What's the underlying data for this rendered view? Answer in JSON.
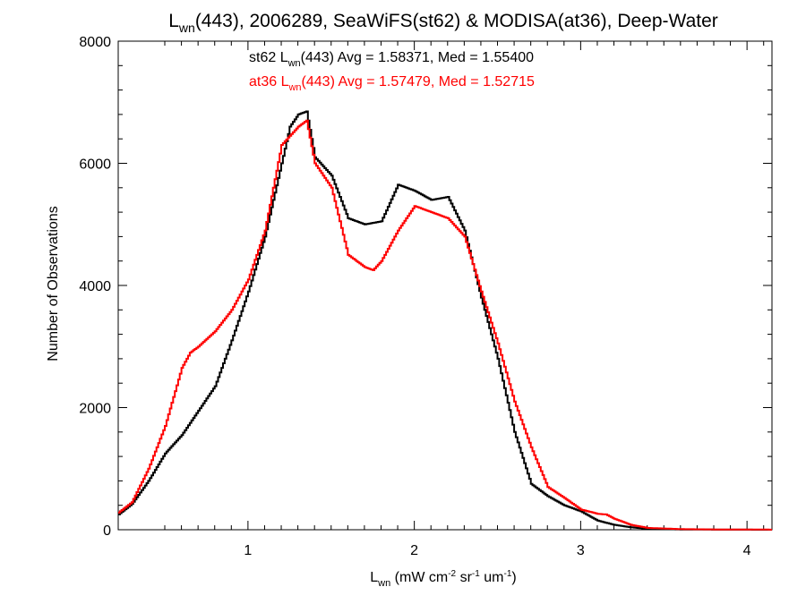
{
  "chart_data": {
    "type": "line",
    "title": {
      "pre": "L",
      "sub": "wn",
      "post": "(443), 2006289, SeaWiFS(st62) & MODISA(at36), Deep-Water"
    },
    "xlabel": {
      "pre": "L",
      "sub": "wn",
      "mid1": " (mW cm",
      "sup1": "-2",
      "mid2": " sr",
      "sup2": "-1",
      "mid3": " um",
      "sup3": "-1",
      "post": ")"
    },
    "ylabel": "Number of Observations",
    "xlim": [
      0.22,
      4.15
    ],
    "ylim": [
      0,
      8000
    ],
    "x_ticks": [
      1,
      2,
      3,
      4
    ],
    "x_tick_labels": [
      "1",
      "2",
      "3",
      "4"
    ],
    "y_ticks": [
      0,
      2000,
      4000,
      6000,
      8000
    ],
    "y_tick_labels": [
      "0",
      "2000",
      "4000",
      "6000",
      "8000"
    ],
    "grid": false,
    "legend": [
      {
        "pre": "st62 L",
        "sub": "wn",
        "post": "(443) Avg = 1.58371, Med = 1.55400",
        "color": "#000000"
      },
      {
        "pre": "at36 L",
        "sub": "wn",
        "post": "(443) Avg = 1.57479, Med = 1.52715",
        "color": "#ff0000"
      }
    ],
    "series": [
      {
        "color": "#000000",
        "step": true,
        "points": [
          [
            0.22,
            250
          ],
          [
            0.3,
            420
          ],
          [
            0.4,
            800
          ],
          [
            0.5,
            1250
          ],
          [
            0.6,
            1550
          ],
          [
            0.7,
            1950
          ],
          [
            0.8,
            2350
          ],
          [
            0.9,
            3100
          ],
          [
            1.0,
            3900
          ],
          [
            1.1,
            4800
          ],
          [
            1.2,
            6000
          ],
          [
            1.25,
            6600
          ],
          [
            1.3,
            6800
          ],
          [
            1.35,
            6850
          ],
          [
            1.4,
            6100
          ],
          [
            1.5,
            5800
          ],
          [
            1.6,
            5100
          ],
          [
            1.7,
            5000
          ],
          [
            1.8,
            5050
          ],
          [
            1.9,
            5650
          ],
          [
            2.0,
            5550
          ],
          [
            2.1,
            5400
          ],
          [
            2.2,
            5450
          ],
          [
            2.3,
            4900
          ],
          [
            2.4,
            3800
          ],
          [
            2.5,
            2800
          ],
          [
            2.6,
            1600
          ],
          [
            2.7,
            750
          ],
          [
            2.8,
            550
          ],
          [
            2.9,
            400
          ],
          [
            3.0,
            300
          ],
          [
            3.1,
            150
          ],
          [
            3.2,
            80
          ],
          [
            3.3,
            40
          ],
          [
            3.4,
            15
          ],
          [
            3.6,
            5
          ],
          [
            3.8,
            2
          ],
          [
            4.15,
            0
          ]
        ]
      },
      {
        "color": "#ff0000",
        "step": true,
        "points": [
          [
            0.22,
            280
          ],
          [
            0.3,
            450
          ],
          [
            0.4,
            1000
          ],
          [
            0.5,
            1700
          ],
          [
            0.6,
            2650
          ],
          [
            0.65,
            2900
          ],
          [
            0.7,
            3000
          ],
          [
            0.8,
            3250
          ],
          [
            0.9,
            3600
          ],
          [
            1.0,
            4100
          ],
          [
            1.1,
            4900
          ],
          [
            1.2,
            6300
          ],
          [
            1.3,
            6600
          ],
          [
            1.35,
            6700
          ],
          [
            1.4,
            6000
          ],
          [
            1.5,
            5600
          ],
          [
            1.6,
            4500
          ],
          [
            1.7,
            4300
          ],
          [
            1.75,
            4250
          ],
          [
            1.8,
            4400
          ],
          [
            1.9,
            4900
          ],
          [
            2.0,
            5300
          ],
          [
            2.1,
            5200
          ],
          [
            2.2,
            5100
          ],
          [
            2.3,
            4800
          ],
          [
            2.4,
            3900
          ],
          [
            2.5,
            3050
          ],
          [
            2.6,
            2100
          ],
          [
            2.7,
            1350
          ],
          [
            2.8,
            700
          ],
          [
            2.9,
            520
          ],
          [
            3.0,
            330
          ],
          [
            3.1,
            260
          ],
          [
            3.15,
            250
          ],
          [
            3.2,
            180
          ],
          [
            3.3,
            80
          ],
          [
            3.4,
            30
          ],
          [
            3.6,
            10
          ],
          [
            3.8,
            5
          ],
          [
            4.15,
            2
          ]
        ]
      }
    ]
  }
}
